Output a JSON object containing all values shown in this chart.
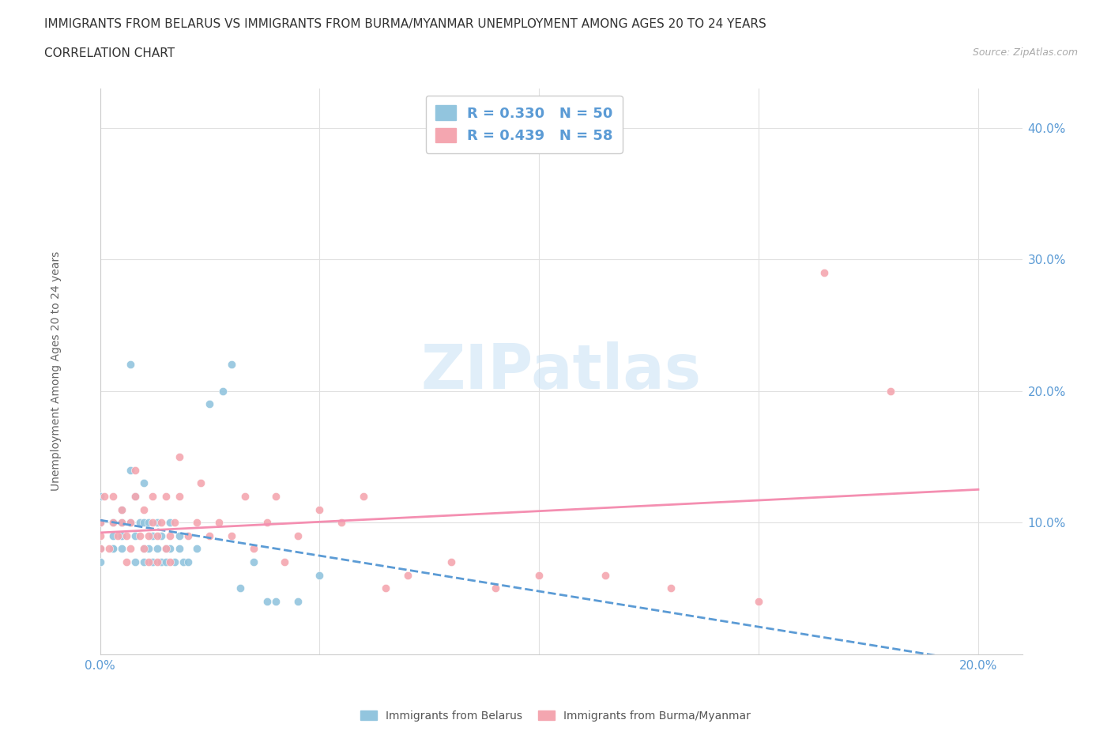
{
  "title_line1": "IMMIGRANTS FROM BELARUS VS IMMIGRANTS FROM BURMA/MYANMAR UNEMPLOYMENT AMONG AGES 20 TO 24 YEARS",
  "title_line2": "CORRELATION CHART",
  "source_text": "Source: ZipAtlas.com",
  "ylabel": "Unemployment Among Ages 20 to 24 years",
  "xlim": [
    0.0,
    0.21
  ],
  "ylim": [
    0.0,
    0.43
  ],
  "belarus_color": "#92c5de",
  "burma_color": "#f4a6b0",
  "belarus_line_color": "#5b9bd5",
  "burma_line_color": "#f48fb1",
  "R_belarus": 0.33,
  "N_belarus": 50,
  "R_burma": 0.439,
  "N_burma": 58,
  "legend_label_belarus": "Immigrants from Belarus",
  "legend_label_burma": "Immigrants from Burma/Myanmar",
  "watermark": "ZIPatlas",
  "belarus_scatter_x": [
    0.0,
    0.0,
    0.0,
    0.0,
    0.003,
    0.003,
    0.003,
    0.003,
    0.005,
    0.005,
    0.005,
    0.005,
    0.007,
    0.007,
    0.007,
    0.008,
    0.008,
    0.008,
    0.009,
    0.01,
    0.01,
    0.01,
    0.01,
    0.011,
    0.011,
    0.012,
    0.012,
    0.013,
    0.013,
    0.014,
    0.014,
    0.015,
    0.015,
    0.016,
    0.016,
    0.017,
    0.018,
    0.018,
    0.019,
    0.02,
    0.022,
    0.025,
    0.028,
    0.03,
    0.032,
    0.035,
    0.038,
    0.04,
    0.045,
    0.05
  ],
  "belarus_scatter_y": [
    0.08,
    0.1,
    0.12,
    0.07,
    0.08,
    0.1,
    0.09,
    0.08,
    0.1,
    0.08,
    0.09,
    0.11,
    0.14,
    0.22,
    0.1,
    0.07,
    0.09,
    0.12,
    0.1,
    0.07,
    0.08,
    0.1,
    0.13,
    0.08,
    0.1,
    0.07,
    0.09,
    0.08,
    0.1,
    0.07,
    0.09,
    0.07,
    0.08,
    0.08,
    0.1,
    0.07,
    0.08,
    0.09,
    0.07,
    0.07,
    0.08,
    0.19,
    0.2,
    0.22,
    0.05,
    0.07,
    0.04,
    0.04,
    0.04,
    0.06
  ],
  "burma_scatter_x": [
    0.0,
    0.0,
    0.0,
    0.001,
    0.002,
    0.003,
    0.003,
    0.004,
    0.005,
    0.005,
    0.006,
    0.006,
    0.007,
    0.007,
    0.008,
    0.008,
    0.009,
    0.01,
    0.01,
    0.011,
    0.011,
    0.012,
    0.012,
    0.013,
    0.013,
    0.014,
    0.015,
    0.015,
    0.016,
    0.016,
    0.017,
    0.018,
    0.018,
    0.02,
    0.022,
    0.023,
    0.025,
    0.027,
    0.03,
    0.033,
    0.035,
    0.038,
    0.04,
    0.042,
    0.045,
    0.05,
    0.055,
    0.06,
    0.065,
    0.07,
    0.08,
    0.09,
    0.1,
    0.115,
    0.13,
    0.15,
    0.165,
    0.18
  ],
  "burma_scatter_y": [
    0.08,
    0.09,
    0.1,
    0.12,
    0.08,
    0.1,
    0.12,
    0.09,
    0.1,
    0.11,
    0.07,
    0.09,
    0.08,
    0.1,
    0.12,
    0.14,
    0.09,
    0.08,
    0.11,
    0.07,
    0.09,
    0.1,
    0.12,
    0.07,
    0.09,
    0.1,
    0.08,
    0.12,
    0.07,
    0.09,
    0.1,
    0.12,
    0.15,
    0.09,
    0.1,
    0.13,
    0.09,
    0.1,
    0.09,
    0.12,
    0.08,
    0.1,
    0.12,
    0.07,
    0.09,
    0.11,
    0.1,
    0.12,
    0.05,
    0.06,
    0.07,
    0.05,
    0.06,
    0.06,
    0.05,
    0.04,
    0.29,
    0.2
  ]
}
